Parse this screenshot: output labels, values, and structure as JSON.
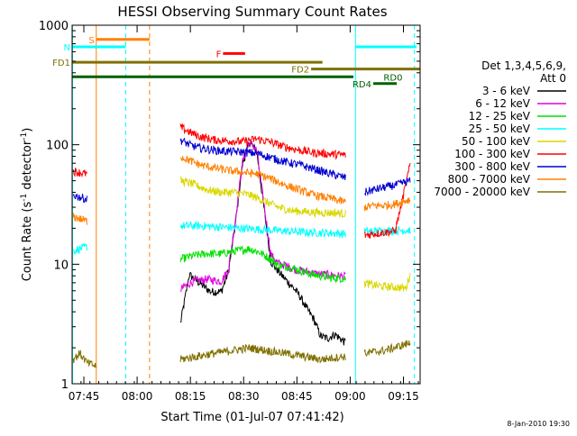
{
  "chart_data": {
    "type": "line",
    "title": "HESSI Observing Summary Count Rates",
    "xlabel": "Start Time (01-Jul-07 07:41:42)",
    "ylabel_main": "Count Rate (s",
    "ylabel_sup1": "-1",
    "ylabel_mid": " detector",
    "ylabel_sup2": "-1",
    "ylabel_end": ")",
    "xlim_minutes": [
      0,
      98
    ],
    "ylim": [
      1,
      1000
    ],
    "yscale": "log",
    "x_ticks": [
      {
        "minute": 3.3,
        "label": "07:45"
      },
      {
        "minute": 18.3,
        "label": "08:00"
      },
      {
        "minute": 33.3,
        "label": "08:15"
      },
      {
        "minute": 48.3,
        "label": "08:30"
      },
      {
        "minute": 63.3,
        "label": "08:45"
      },
      {
        "minute": 78.3,
        "label": "09:00"
      },
      {
        "minute": 93.3,
        "label": "09:15"
      }
    ],
    "y_ticks": [
      {
        "value": 1,
        "label": "1"
      },
      {
        "value": 10,
        "label": "10"
      },
      {
        "value": 100,
        "label": "100"
      },
      {
        "value": 1000,
        "label": "1000"
      }
    ],
    "legend": {
      "position": "right",
      "header1": "Det 1,3,4,5,6,9,",
      "header2": "Att 0",
      "entries": [
        {
          "label": "3 - 6 keV",
          "color": "#000000"
        },
        {
          "label": "6 - 12 keV",
          "color": "#e000e0"
        },
        {
          "label": "12 - 25 keV",
          "color": "#00e000"
        },
        {
          "label": "25 - 50 keV",
          "color": "#00ffff"
        },
        {
          "label": "50 - 100 keV",
          "color": "#d8d800"
        },
        {
          "label": "100 - 300 keV",
          "color": "#ff0000"
        },
        {
          "label": "300 - 800 keV",
          "color": "#0000d0"
        },
        {
          "label": "800 - 7000 keV",
          "color": "#ff8000"
        },
        {
          "label": "7000 - 20000 keV",
          "color": "#807000"
        }
      ]
    },
    "series": [
      {
        "name": "3 - 6 keV",
        "color": "#000000",
        "segments": [
          {
            "x": [
              30.5,
              33,
              36,
              39,
              42,
              44,
              46,
              48,
              50,
              52,
              54,
              56,
              58,
              60,
              62,
              64,
              66,
              68,
              70,
              72,
              74,
              77
            ],
            "y": [
              3.2,
              8.2,
              6.9,
              5.9,
              5.9,
              8.6,
              22,
              70,
              105,
              88,
              30,
              10.5,
              8.8,
              7.5,
              6.5,
              5.5,
              4.3,
              3.5,
              2.5,
              2.4,
              2.6,
              2.2
            ]
          }
        ]
      },
      {
        "name": "6 - 12 keV",
        "color": "#e000e0",
        "segments": [
          {
            "x": [
              30.5,
              34,
              38,
              42,
              44,
              46,
              48,
              50,
              52,
              54,
              56,
              58,
              60,
              63,
              66,
              69,
              72,
              75,
              77
            ],
            "y": [
              6.2,
              7.2,
              7.5,
              7.2,
              9.0,
              24,
              72,
              105,
              90,
              32,
              12,
              10.2,
              9.8,
              9.0,
              8.7,
              8.3,
              8.2,
              8.0,
              7.9
            ]
          }
        ]
      },
      {
        "name": "12 - 25 keV",
        "color": "#00e000",
        "segments": [
          {
            "x": [
              30.5,
              34,
              38,
              42,
              45,
              48,
              50,
              53,
              56,
              58,
              61,
              64,
              67,
              70,
              73,
              77
            ],
            "y": [
              11,
              11.8,
              12.3,
              12.2,
              12.8,
              13.2,
              13.5,
              12.5,
              11.0,
              9.8,
              9.5,
              8.9,
              8.3,
              8.0,
              7.7,
              7.6
            ]
          }
        ]
      },
      {
        "name": "25 - 50 keV",
        "color": "#00ffff",
        "segments": [
          {
            "x": [
              0.3,
              4.2
            ],
            "y": [
              13,
              14
            ]
          },
          {
            "x": [
              30.5,
              36,
              42,
              48,
              54,
              60,
              66,
              72,
              77
            ],
            "y": [
              21,
              21,
              20.5,
              20,
              19.5,
              19,
              18.5,
              18.3,
              18
            ]
          },
          {
            "x": [
              82.3,
              87,
              92,
              95.2
            ],
            "y": [
              18.8,
              19,
              19.2,
              19.3
            ]
          }
        ]
      },
      {
        "name": "50 - 100 keV",
        "color": "#d8d800",
        "segments": [
          {
            "x": [
              30.5,
              34,
              38,
              42,
              46,
              50,
              54,
              58,
              62,
              66,
              70,
              74,
              77
            ],
            "y": [
              50,
              47,
              42,
              40,
              40,
              38,
              34,
              30,
              28,
              27.5,
              27,
              27,
              26.5
            ]
          },
          {
            "x": [
              82.3,
              84,
              86,
              89,
              92,
              94,
              95.2
            ],
            "y": [
              7,
              6.8,
              6.6,
              6.5,
              6.4,
              6.3,
              8.3
            ]
          }
        ]
      },
      {
        "name": "100 - 300 keV",
        "color": "#ff0000",
        "segments": [
          {
            "x": [
              0.3,
              4.2
            ],
            "y": [
              60,
              57
            ]
          },
          {
            "x": [
              30.5,
              33,
              36,
              40,
              44,
              48,
              52,
              56,
              60,
              64,
              68,
              72,
              77
            ],
            "y": [
              140,
              128,
              117,
              110,
              108,
              106,
              112,
              105,
              96,
              90,
              86,
              84,
              82
            ]
          },
          {
            "x": [
              82.3,
              85,
              88,
              91,
              95.2
            ],
            "y": [
              17.5,
              18,
              18.5,
              19,
              68
            ]
          }
        ]
      },
      {
        "name": "300 - 800 keV",
        "color": "#0000d0",
        "segments": [
          {
            "x": [
              0.3,
              4.2
            ],
            "y": [
              38,
              35
            ]
          },
          {
            "x": [
              30.5,
              33,
              36,
              40,
              44,
              48,
              52,
              56,
              60,
              64,
              68,
              72,
              77
            ],
            "y": [
              110,
              100,
              94,
              90,
              88,
              87,
              85,
              78,
              72,
              68,
              63,
              58,
              53
            ]
          },
          {
            "x": [
              82.3,
              85,
              88,
              91,
              95.2
            ],
            "y": [
              40,
              42,
              44,
              46,
              50
            ]
          }
        ]
      },
      {
        "name": "800 - 7000 keV",
        "color": "#ff8000",
        "segments": [
          {
            "x": [
              0.3,
              4.2
            ],
            "y": [
              25,
              23
            ]
          },
          {
            "x": [
              30.5,
              33,
              36,
              40,
              44,
              48,
              52,
              56,
              60,
              64,
              68,
              72,
              77
            ],
            "y": [
              80,
              74,
              68,
              64,
              61,
              59,
              57,
              52,
              46,
              42,
              38,
              36,
              33
            ]
          },
          {
            "x": [
              82.3,
              85,
              88,
              91,
              95.2
            ],
            "y": [
              30,
              31,
              31,
              32,
              35
            ]
          }
        ]
      },
      {
        "name": "7000 - 20000 keV",
        "color": "#807000",
        "segments": [
          {
            "x": [
              0.3,
              2.2,
              4.2,
              6.8
            ],
            "y": [
              1.6,
              1.8,
              1.5,
              1.4
            ]
          },
          {
            "x": [
              30.5,
              40,
              50,
              60,
              70,
              77
            ],
            "y": [
              1.6,
              1.8,
              2.0,
              1.8,
              1.6,
              1.7
            ]
          },
          {
            "x": [
              82.3,
              88,
              95.2
            ],
            "y": [
              1.8,
              1.9,
              2.2
            ]
          }
        ]
      }
    ],
    "state_bars": [
      {
        "label": "S",
        "color": "#ff8000",
        "x_start": 6.8,
        "x_end": 21.8,
        "y": 760
      },
      {
        "label": "N",
        "color": "#00ffff",
        "x_start": 0,
        "x_end": 15.1,
        "y": 660
      },
      {
        "label": "N",
        "color": "#00ffff",
        "x_start": 79.8,
        "x_end": 97.0,
        "y": 660,
        "show_label": false
      },
      {
        "label": "F",
        "color": "#ff0000",
        "x_start": 42.5,
        "x_end": 48.7,
        "y": 580
      },
      {
        "label": "FD1",
        "color": "#807000",
        "x_start": 0,
        "x_end": 70.5,
        "y": 490
      },
      {
        "label": "FD2",
        "color": "#807000",
        "x_start": 67.3,
        "x_end": 98,
        "y": 430
      },
      {
        "label": "RD0",
        "color": "#006000",
        "x_start": 0,
        "x_end": 79.2,
        "y": 370,
        "label_x": 87.7
      },
      {
        "label": "RD4",
        "color": "#006000",
        "x_start": 84.8,
        "x_end": 91.4,
        "y": 325
      }
    ],
    "event_lines": [
      {
        "minute": 0.1,
        "color": "#00ffff",
        "style": "solid"
      },
      {
        "minute": 6.8,
        "color": "#ff8000",
        "style": "solid"
      },
      {
        "minute": 15.1,
        "color": "#00ffff",
        "style": "dash"
      },
      {
        "minute": 21.8,
        "color": "#ff8000",
        "style": "dash"
      },
      {
        "minute": 79.8,
        "color": "#00ffff",
        "style": "solid"
      },
      {
        "minute": 96.4,
        "color": "#00ffff",
        "style": "dash"
      }
    ]
  },
  "footer": {
    "stamp": "8-Jan-2010 19:30"
  }
}
